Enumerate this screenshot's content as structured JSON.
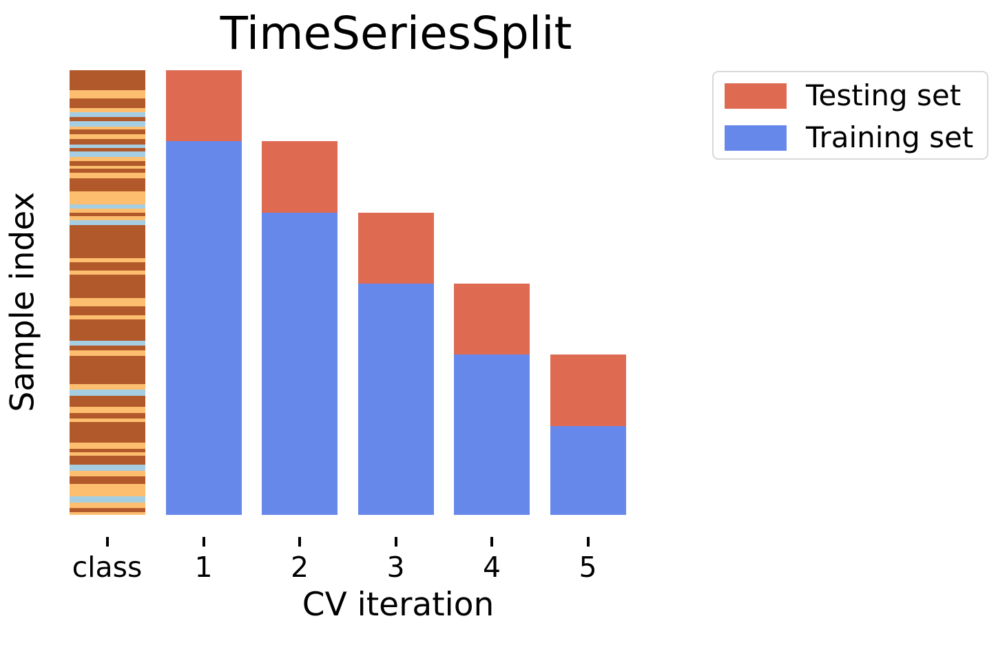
{
  "chart_data": {
    "type": "bar",
    "title": "TimeSeriesSplit",
    "xlabel": "CV iteration",
    "ylabel": "Sample index",
    "categories": [
      "class",
      "1",
      "2",
      "3",
      "4",
      "5"
    ],
    "n_samples": 100,
    "ylim": [
      0,
      100
    ],
    "grid": false,
    "colors": {
      "training": "#6788eb",
      "testing": "#df6a52"
    },
    "legend": {
      "position": "outside-upper-right",
      "entries": [
        {
          "label": "Testing set",
          "color_key": "testing"
        },
        {
          "label": "Training set",
          "color_key": "training"
        }
      ]
    },
    "cv_iterations": [
      {
        "label": "1",
        "train": [
          0,
          84
        ],
        "test": [
          84,
          100
        ]
      },
      {
        "label": "2",
        "train": [
          0,
          68
        ],
        "test": [
          68,
          84
        ]
      },
      {
        "label": "3",
        "train": [
          0,
          52
        ],
        "test": [
          52,
          68
        ]
      },
      {
        "label": "4",
        "train": [
          0,
          36
        ],
        "test": [
          36,
          52
        ]
      },
      {
        "label": "5",
        "train": [
          0,
          20
        ],
        "test": [
          20,
          36
        ]
      }
    ],
    "class_colors": {
      "A": "#b1592a",
      "B": "#fdbf6f",
      "C": "#a6cee3"
    },
    "class_segments_top_to_bottom": [
      [
        "A",
        28.7
      ],
      [
        "B",
        12.0
      ],
      [
        "A",
        14.6
      ],
      [
        "B",
        5.7
      ],
      [
        "C",
        7.3
      ],
      [
        "A",
        6.0
      ],
      [
        "C",
        7.7
      ],
      [
        "B",
        3.7
      ],
      [
        "A",
        7.3
      ],
      [
        "B",
        7.3
      ],
      [
        "A",
        7.7
      ],
      [
        "C",
        5.3
      ],
      [
        "A",
        5.0
      ],
      [
        "C",
        8.0
      ],
      [
        "B",
        5.4
      ],
      [
        "A",
        7.0
      ],
      [
        "B",
        4.0
      ],
      [
        "A",
        6.3
      ],
      [
        "B",
        8.0
      ],
      [
        "A",
        19.3
      ],
      [
        "B",
        18.4
      ],
      [
        "C",
        6.6
      ],
      [
        "B",
        5.7
      ],
      [
        "A",
        5.3
      ],
      [
        "B",
        5.7
      ],
      [
        "C",
        6.7
      ],
      [
        "A",
        48.3
      ],
      [
        "B",
        6.0
      ],
      [
        "A",
        12.3
      ],
      [
        "B",
        6.0
      ],
      [
        "A",
        34.0
      ],
      [
        "B",
        11.7
      ],
      [
        "A",
        13.3
      ],
      [
        "B",
        6.0
      ],
      [
        "A",
        31.0
      ],
      [
        "C",
        6.7
      ],
      [
        "A",
        7.3
      ],
      [
        "B",
        7.4
      ],
      [
        "A",
        41.3
      ],
      [
        "B",
        8.3
      ],
      [
        "C",
        9.0
      ],
      [
        "A",
        15.7
      ],
      [
        "B",
        9.0
      ],
      [
        "A",
        8.3
      ],
      [
        "B",
        5.0
      ],
      [
        "A",
        30.0
      ],
      [
        "B",
        8.4
      ],
      [
        "A",
        5.6
      ],
      [
        "B",
        4.4
      ],
      [
        "A",
        13.3
      ],
      [
        "C",
        9.0
      ],
      [
        "B",
        7.7
      ],
      [
        "A",
        11.0
      ],
      [
        "B",
        19.0
      ],
      [
        "C",
        9.0
      ],
      [
        "B",
        7.6
      ],
      [
        "A",
        5.7
      ],
      [
        "B",
        4.3
      ]
    ]
  }
}
